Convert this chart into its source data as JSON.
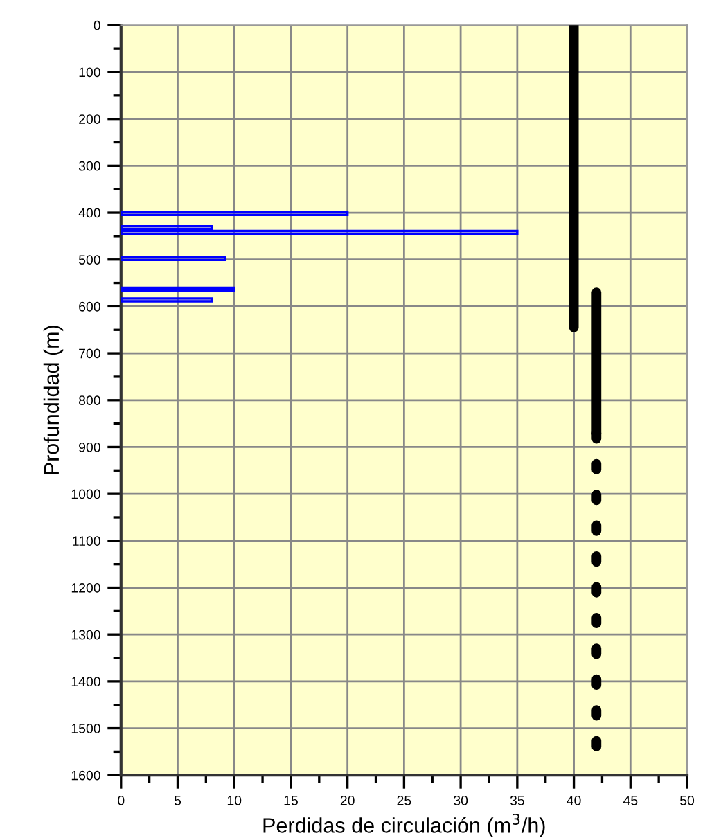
{
  "chart_data": {
    "type": "bar",
    "orientation": "horizontal",
    "xlabel": "Perdidas de circulación (m$^{3}$/h)",
    "ylabel": "Profundidad (m)",
    "xlim": [
      0,
      50
    ],
    "xticks": [
      0,
      5,
      10,
      15,
      20,
      25,
      30,
      35,
      40,
      45,
      50
    ],
    "ylim": [
      1600,
      0
    ],
    "yticks": [
      0,
      100,
      200,
      300,
      400,
      500,
      600,
      700,
      800,
      900,
      1000,
      1100,
      1200,
      1300,
      1400,
      1500,
      1600
    ],
    "grid": true,
    "series": [
      {
        "color": "#0000ff",
        "x": [
          402,
          432,
          442,
          498,
          563,
          586
        ],
        "values": [
          20,
          8,
          35,
          9.2,
          10,
          8
        ]
      },
      {
        "type": "line",
        "color": "#000000",
        "line_style": "solid",
        "x": [
          0,
          645
        ],
        "values": [
          40,
          40
        ]
      },
      {
        "type": "line",
        "color": "#000000",
        "line_style": "solid",
        "x": [
          570,
          870
        ],
        "values": [
          42,
          42
        ]
      },
      {
        "type": "line",
        "color": "#000000",
        "line_style": "dotted",
        "x": [
          870,
          1550
        ],
        "values": [
          42,
          42
        ]
      }
    ]
  }
}
